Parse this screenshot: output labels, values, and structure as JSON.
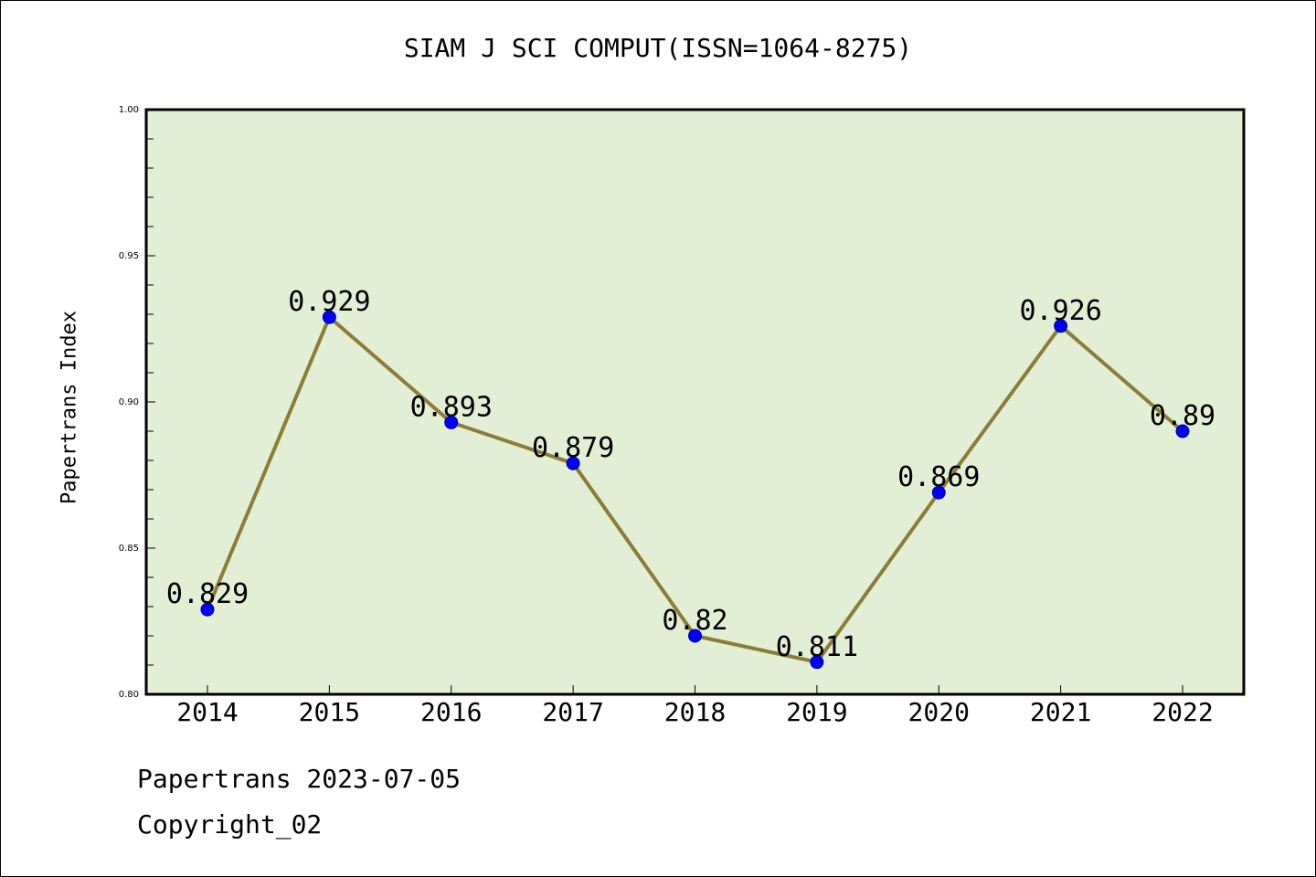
{
  "chart_data": {
    "type": "line",
    "title": "SIAM J SCI COMPUT(ISSN=1064-8275)",
    "xlabel": "",
    "ylabel": "Papertrans Index",
    "categories": [
      "2014",
      "2015",
      "2016",
      "2017",
      "2018",
      "2019",
      "2020",
      "2021",
      "2022"
    ],
    "series": [
      {
        "values": [
          0.829,
          0.929,
          0.893,
          0.879,
          0.82,
          0.811,
          0.869,
          0.926,
          0.89
        ]
      }
    ],
    "data_labels": [
      "0.829",
      "0.929",
      "0.893",
      "0.879",
      "0.82",
      "0.811",
      "0.869",
      "0.926",
      "0.89"
    ],
    "ylim": [
      0.8,
      1.0
    ],
    "yticks": [
      "0.80",
      "0.85",
      "0.90",
      "0.95",
      "1.00"
    ],
    "grid": false,
    "colors": {
      "plot_background": "#e2efd5",
      "line": "#8b7d35",
      "marker": "#0000ff"
    }
  },
  "footer": {
    "line1": "Papertrans 2023-07-05",
    "line2": "Copyright_02"
  }
}
